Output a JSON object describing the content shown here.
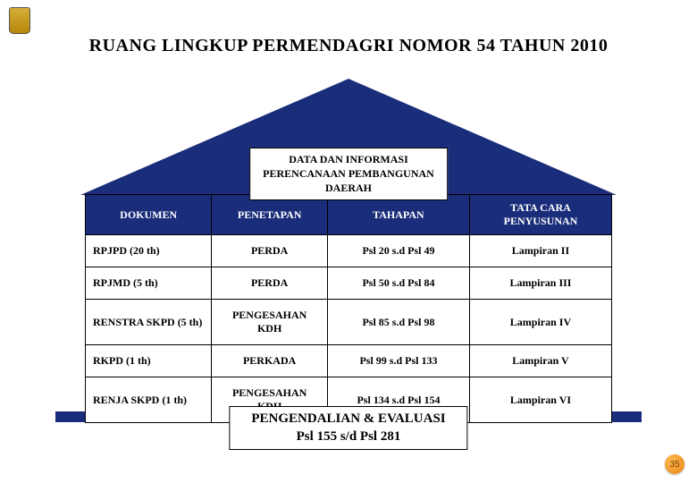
{
  "title": "RUANG LINGKUP PERMENDAGRI NOMOR 54 TAHUN 2010",
  "roof": {
    "line1": "DATA DAN INFORMASI",
    "line2": "PERENCANAAN PEMBANGUNAN",
    "line3": "DAERAH"
  },
  "table": {
    "headers": {
      "dokumen": "DOKUMEN",
      "penetapan": "PENETAPAN",
      "tahapan": "TAHAPAN",
      "tatacara": "TATA CARA PENYUSUNAN"
    },
    "rows": [
      {
        "dokumen": "RPJPD  (20 th)",
        "penetapan": "PERDA",
        "tahapan": "Psl 20  s.d  Psl 49",
        "tatacara": "Lampiran II"
      },
      {
        "dokumen": "RPJMD  (5 th)",
        "penetapan": "PERDA",
        "tahapan": "Psl 50  s.d  Psl 84",
        "tatacara": "Lampiran III"
      },
      {
        "dokumen": "RENSTRA SKPD (5 th)",
        "penetapan": "PENGESAHAN KDH",
        "tahapan": "Psl 85  s.d  Psl 98",
        "tatacara": "Lampiran IV"
      },
      {
        "dokumen": "RKPD (1 th)",
        "penetapan": "PERKADA",
        "tahapan": "Psl 99  s.d  Psl 133",
        "tatacara": "Lampiran V"
      },
      {
        "dokumen": "RENJA SKPD (1 th)",
        "penetapan": "PENGESAHAN KDH",
        "tahapan": "Psl 134  s.d  Psl 154",
        "tatacara": "Lampiran VI"
      }
    ]
  },
  "footer": {
    "line1": "PENGENDALIAN & EVALUASI",
    "line2": "Psl 155 s/d Psl 281"
  },
  "page_number": "35"
}
